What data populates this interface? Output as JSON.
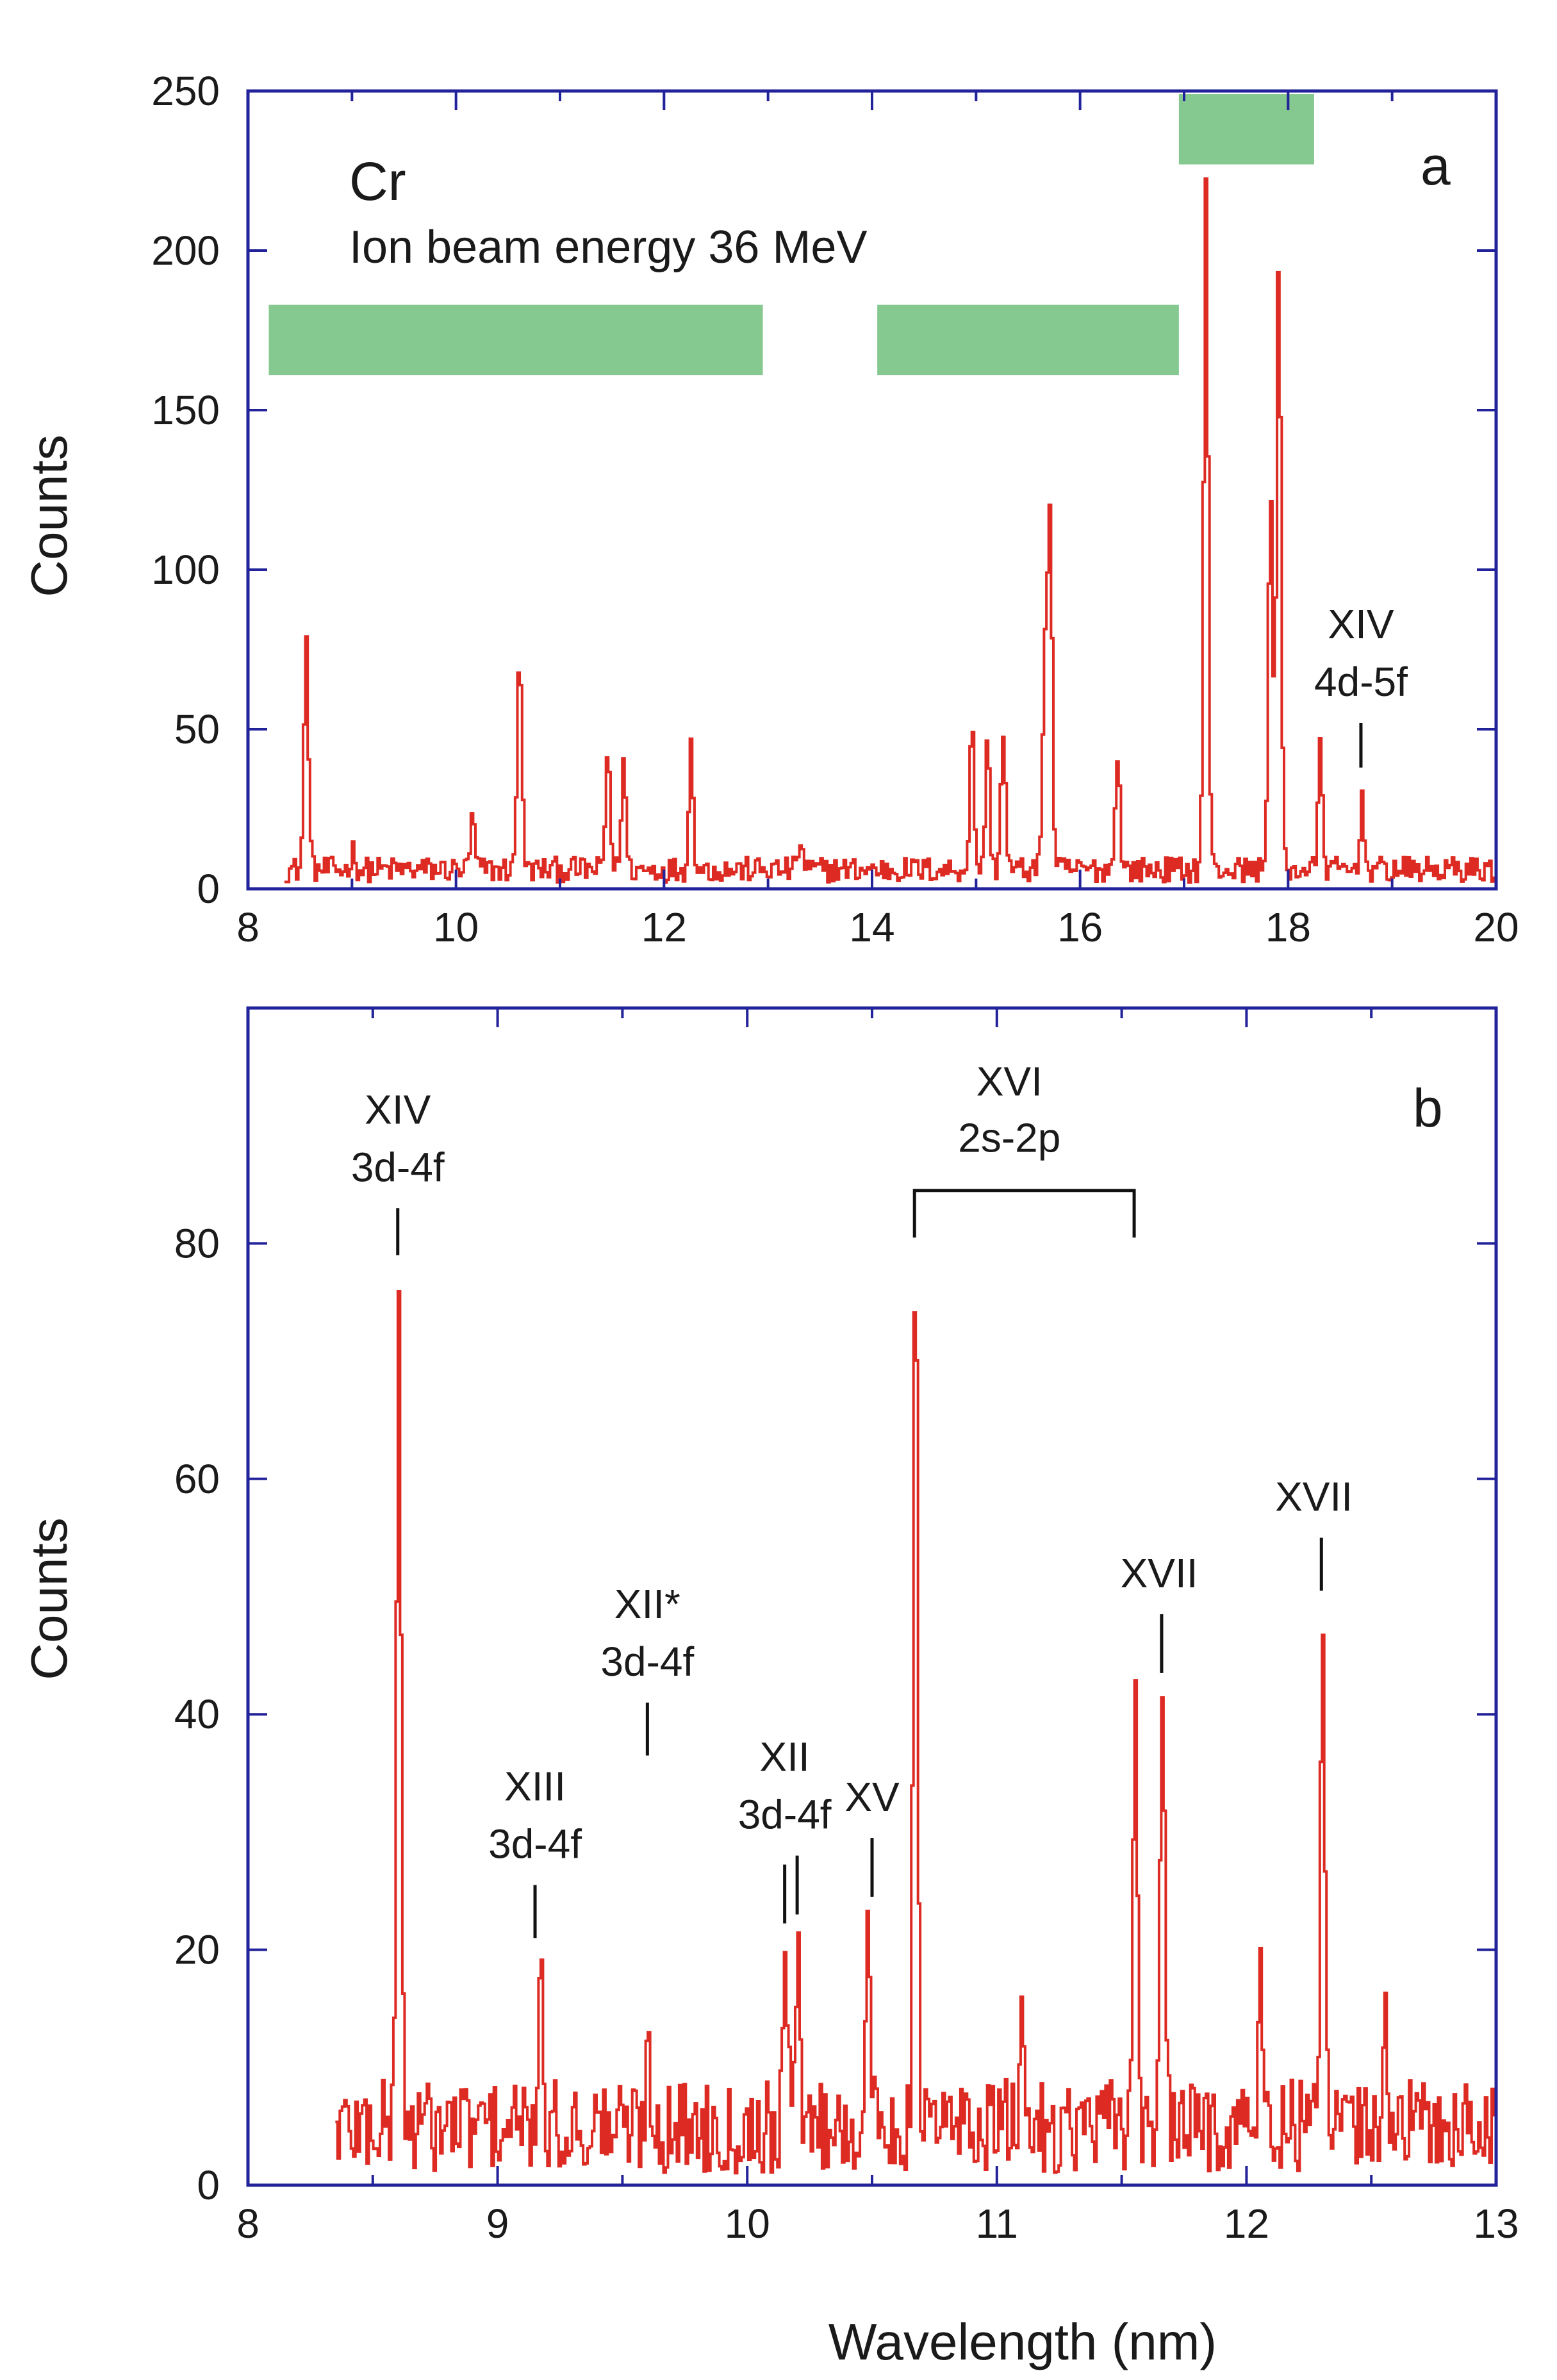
{
  "colors": {
    "frame": "#22229a",
    "trace": "#dd2a22",
    "band": "#86c990",
    "text": "#1a1a1a"
  },
  "chart_data": [
    {
      "type": "line",
      "panel": "a",
      "title": "Cr",
      "subtitle": "Ion beam energy 36 MeV",
      "xlabel": "",
      "ylabel": "Counts",
      "xlim": [
        8,
        20
      ],
      "ylim": [
        0,
        250
      ],
      "xticks": [
        8,
        10,
        12,
        14,
        16,
        18,
        20
      ],
      "xtick_labels": [
        "8",
        "10",
        "12",
        "14",
        "16",
        "18",
        "20"
      ],
      "yticks": [
        0,
        50,
        100,
        150,
        200,
        250
      ],
      "ytick_labels": [
        "0",
        "50",
        "100",
        "150",
        "200",
        "250"
      ],
      "baseline": {
        "x0": 8.35,
        "x1": 20,
        "mean": 6,
        "noise": 4
      },
      "peaks": [
        {
          "x": 8.55,
          "y": 77
        },
        {
          "x": 9.0,
          "y": 12
        },
        {
          "x": 10.15,
          "y": 22
        },
        {
          "x": 10.6,
          "y": 77
        },
        {
          "x": 11.45,
          "y": 44
        },
        {
          "x": 11.6,
          "y": 40
        },
        {
          "x": 12.25,
          "y": 45
        },
        {
          "x": 13.3,
          "y": 15
        },
        {
          "x": 14.95,
          "y": 50
        },
        {
          "x": 15.1,
          "y": 45
        },
        {
          "x": 15.25,
          "y": 50
        },
        {
          "x": 15.65,
          "y": 72
        },
        {
          "x": 15.7,
          "y": 117
        },
        {
          "x": 16.35,
          "y": 44
        },
        {
          "x": 17.2,
          "y": 220
        },
        {
          "x": 17.82,
          "y": 125
        },
        {
          "x": 17.9,
          "y": 196
        },
        {
          "x": 18.3,
          "y": 44
        },
        {
          "x": 18.7,
          "y": 27
        }
      ],
      "bands": [
        {
          "x0": 8.2,
          "x1": 12.95,
          "y0": 161,
          "y1": 183
        },
        {
          "x0": 14.05,
          "x1": 16.95,
          "y0": 161,
          "y1": 183
        },
        {
          "x0": 16.95,
          "x1": 18.25,
          "y0": 227,
          "y1": 249
        }
      ],
      "annotations": [
        {
          "lines": [
            "XIV",
            "4d-5f"
          ],
          "x": 18.7,
          "marker_y": [
            38,
            52
          ]
        }
      ]
    },
    {
      "type": "line",
      "panel": "b",
      "title": "",
      "xlabel": "Wavelength (nm)",
      "ylabel": "Counts",
      "xlim": [
        8,
        13
      ],
      "ylim": [
        0,
        100
      ],
      "xticks": [
        8,
        9,
        10,
        11,
        12,
        13
      ],
      "xtick_labels": [
        "8",
        "9",
        "10",
        "11",
        "12",
        "13"
      ],
      "yticks": [
        0,
        20,
        40,
        60,
        80
      ],
      "ytick_labels": [
        "0",
        "20",
        "40",
        "60",
        "80"
      ],
      "baseline": {
        "x0": 8.35,
        "x1": 13,
        "mean": 5,
        "noise": 4
      },
      "peaks": [
        {
          "x": 8.6,
          "y": 77
        },
        {
          "x": 9.17,
          "y": 16
        },
        {
          "x": 9.6,
          "y": 12
        },
        {
          "x": 10.15,
          "y": 18
        },
        {
          "x": 10.2,
          "y": 24
        },
        {
          "x": 10.48,
          "y": 23
        },
        {
          "x": 10.67,
          "y": 77
        },
        {
          "x": 11.1,
          "y": 15
        },
        {
          "x": 11.55,
          "y": 43
        },
        {
          "x": 11.66,
          "y": 41
        },
        {
          "x": 12.05,
          "y": 17
        },
        {
          "x": 12.3,
          "y": 45
        },
        {
          "x": 12.55,
          "y": 16
        }
      ],
      "annotations": [
        {
          "lines": [
            "XIV",
            "3d-4f"
          ],
          "x": 8.6,
          "marker_x": [
            8.6
          ],
          "marker_y": [
            79,
            83
          ]
        },
        {
          "lines": [
            "XIII",
            "3d-4f"
          ],
          "x": 9.15,
          "marker_x": [
            9.15
          ],
          "marker_y": [
            21,
            25.5
          ]
        },
        {
          "lines": [
            "XII*",
            "3d-4f"
          ],
          "x": 9.6,
          "marker_x": [
            9.6
          ],
          "marker_y": [
            36.5,
            41
          ]
        },
        {
          "lines": [
            "XII",
            "3d-4f"
          ],
          "x": 10.15,
          "marker_x": [
            10.15,
            10.2
          ],
          "marker_y": [
            23,
            28
          ]
        },
        {
          "lines": [
            "XV"
          ],
          "x": 10.5,
          "marker_x": [
            10.5
          ],
          "marker_y": [
            24.5,
            29.5
          ]
        },
        {
          "lines": [
            "XVI",
            "2s-2p"
          ],
          "x": 11.05,
          "bracket": [
            10.67,
            11.55
          ],
          "bracket_y": 84.5,
          "bracket_drop": 4
        },
        {
          "lines": [
            "XVII"
          ],
          "x": 11.65,
          "marker_x": [
            11.66
          ],
          "marker_y": [
            43.5,
            48.5
          ]
        },
        {
          "lines": [
            "XVII"
          ],
          "x": 12.27,
          "marker_x": [
            12.3
          ],
          "marker_y": [
            50.5,
            55
          ]
        }
      ]
    }
  ]
}
